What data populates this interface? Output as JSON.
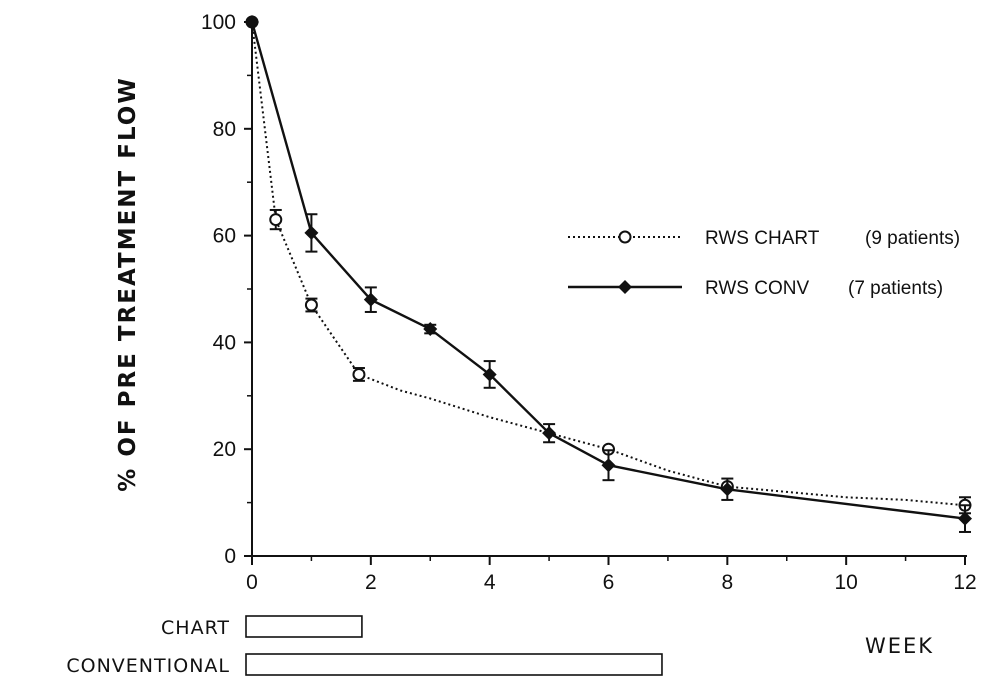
{
  "chart_data": {
    "type": "line",
    "title": "",
    "xlabel": "WEEK",
    "ylabel": "% OF PRE TREATMENT FLOW",
    "xlim": [
      0,
      12
    ],
    "ylim": [
      0,
      100
    ],
    "xticks": [
      0,
      2,
      4,
      6,
      8,
      10,
      12
    ],
    "yticks": [
      0,
      20,
      40,
      60,
      80,
      100
    ],
    "x_tick_labels": [
      "0",
      "2",
      "4",
      "6",
      "8",
      "10",
      "12"
    ],
    "y_tick_labels": [
      "0",
      "20",
      "40",
      "60",
      "80",
      "100"
    ],
    "grid": false,
    "legend_position": "right",
    "series": [
      {
        "name": "RWS CHART (9 patients)",
        "label_main": "RWS CHART",
        "label_note": "(9 patients)",
        "marker": "open-circle",
        "line_style": "dotted",
        "points": [
          {
            "x": 0,
            "y": 100,
            "err": 0
          },
          {
            "x": 0.4,
            "y": 63,
            "err": 1.8
          },
          {
            "x": 1,
            "y": 47,
            "err": 1.2
          },
          {
            "x": 1.8,
            "y": 34,
            "err": 1.2
          },
          {
            "x": 6,
            "y": 20,
            "err": 0
          },
          {
            "x": 8,
            "y": 13,
            "err": 0
          },
          {
            "x": 12,
            "y": 9.5,
            "err": 1.5
          }
        ],
        "smooth_points": [
          {
            "x": 2.5,
            "y": 31
          },
          {
            "x": 3,
            "y": 29.5
          },
          {
            "x": 4,
            "y": 26
          },
          {
            "x": 5,
            "y": 23
          },
          {
            "x": 7,
            "y": 16
          },
          {
            "x": 9,
            "y": 12
          },
          {
            "x": 10,
            "y": 11
          },
          {
            "x": 11,
            "y": 10.5
          }
        ]
      },
      {
        "name": "RWS CONV (7 patients)",
        "label_main": "RWS CONV",
        "label_note": "(7 patients)",
        "marker": "filled-diamond",
        "line_style": "solid",
        "points": [
          {
            "x": 0,
            "y": 100,
            "err": 0
          },
          {
            "x": 1,
            "y": 60.5,
            "err": 3.5
          },
          {
            "x": 2,
            "y": 48,
            "err": 2.3
          },
          {
            "x": 3,
            "y": 42.5,
            "err": 0.8
          },
          {
            "x": 4,
            "y": 34,
            "err": 2.5
          },
          {
            "x": 5,
            "y": 23,
            "err": 1.7
          },
          {
            "x": 6,
            "y": 17,
            "err": 2.8
          },
          {
            "x": 8,
            "y": 12.5,
            "err": 2.0
          },
          {
            "x": 12,
            "y": 7,
            "err": 2.5
          }
        ]
      }
    ],
    "duration_bars": [
      {
        "label": "CHART",
        "start": 0,
        "end": 1.85
      },
      {
        "label": "CONVENTIONAL",
        "start": 0,
        "end": 6.9
      }
    ]
  }
}
